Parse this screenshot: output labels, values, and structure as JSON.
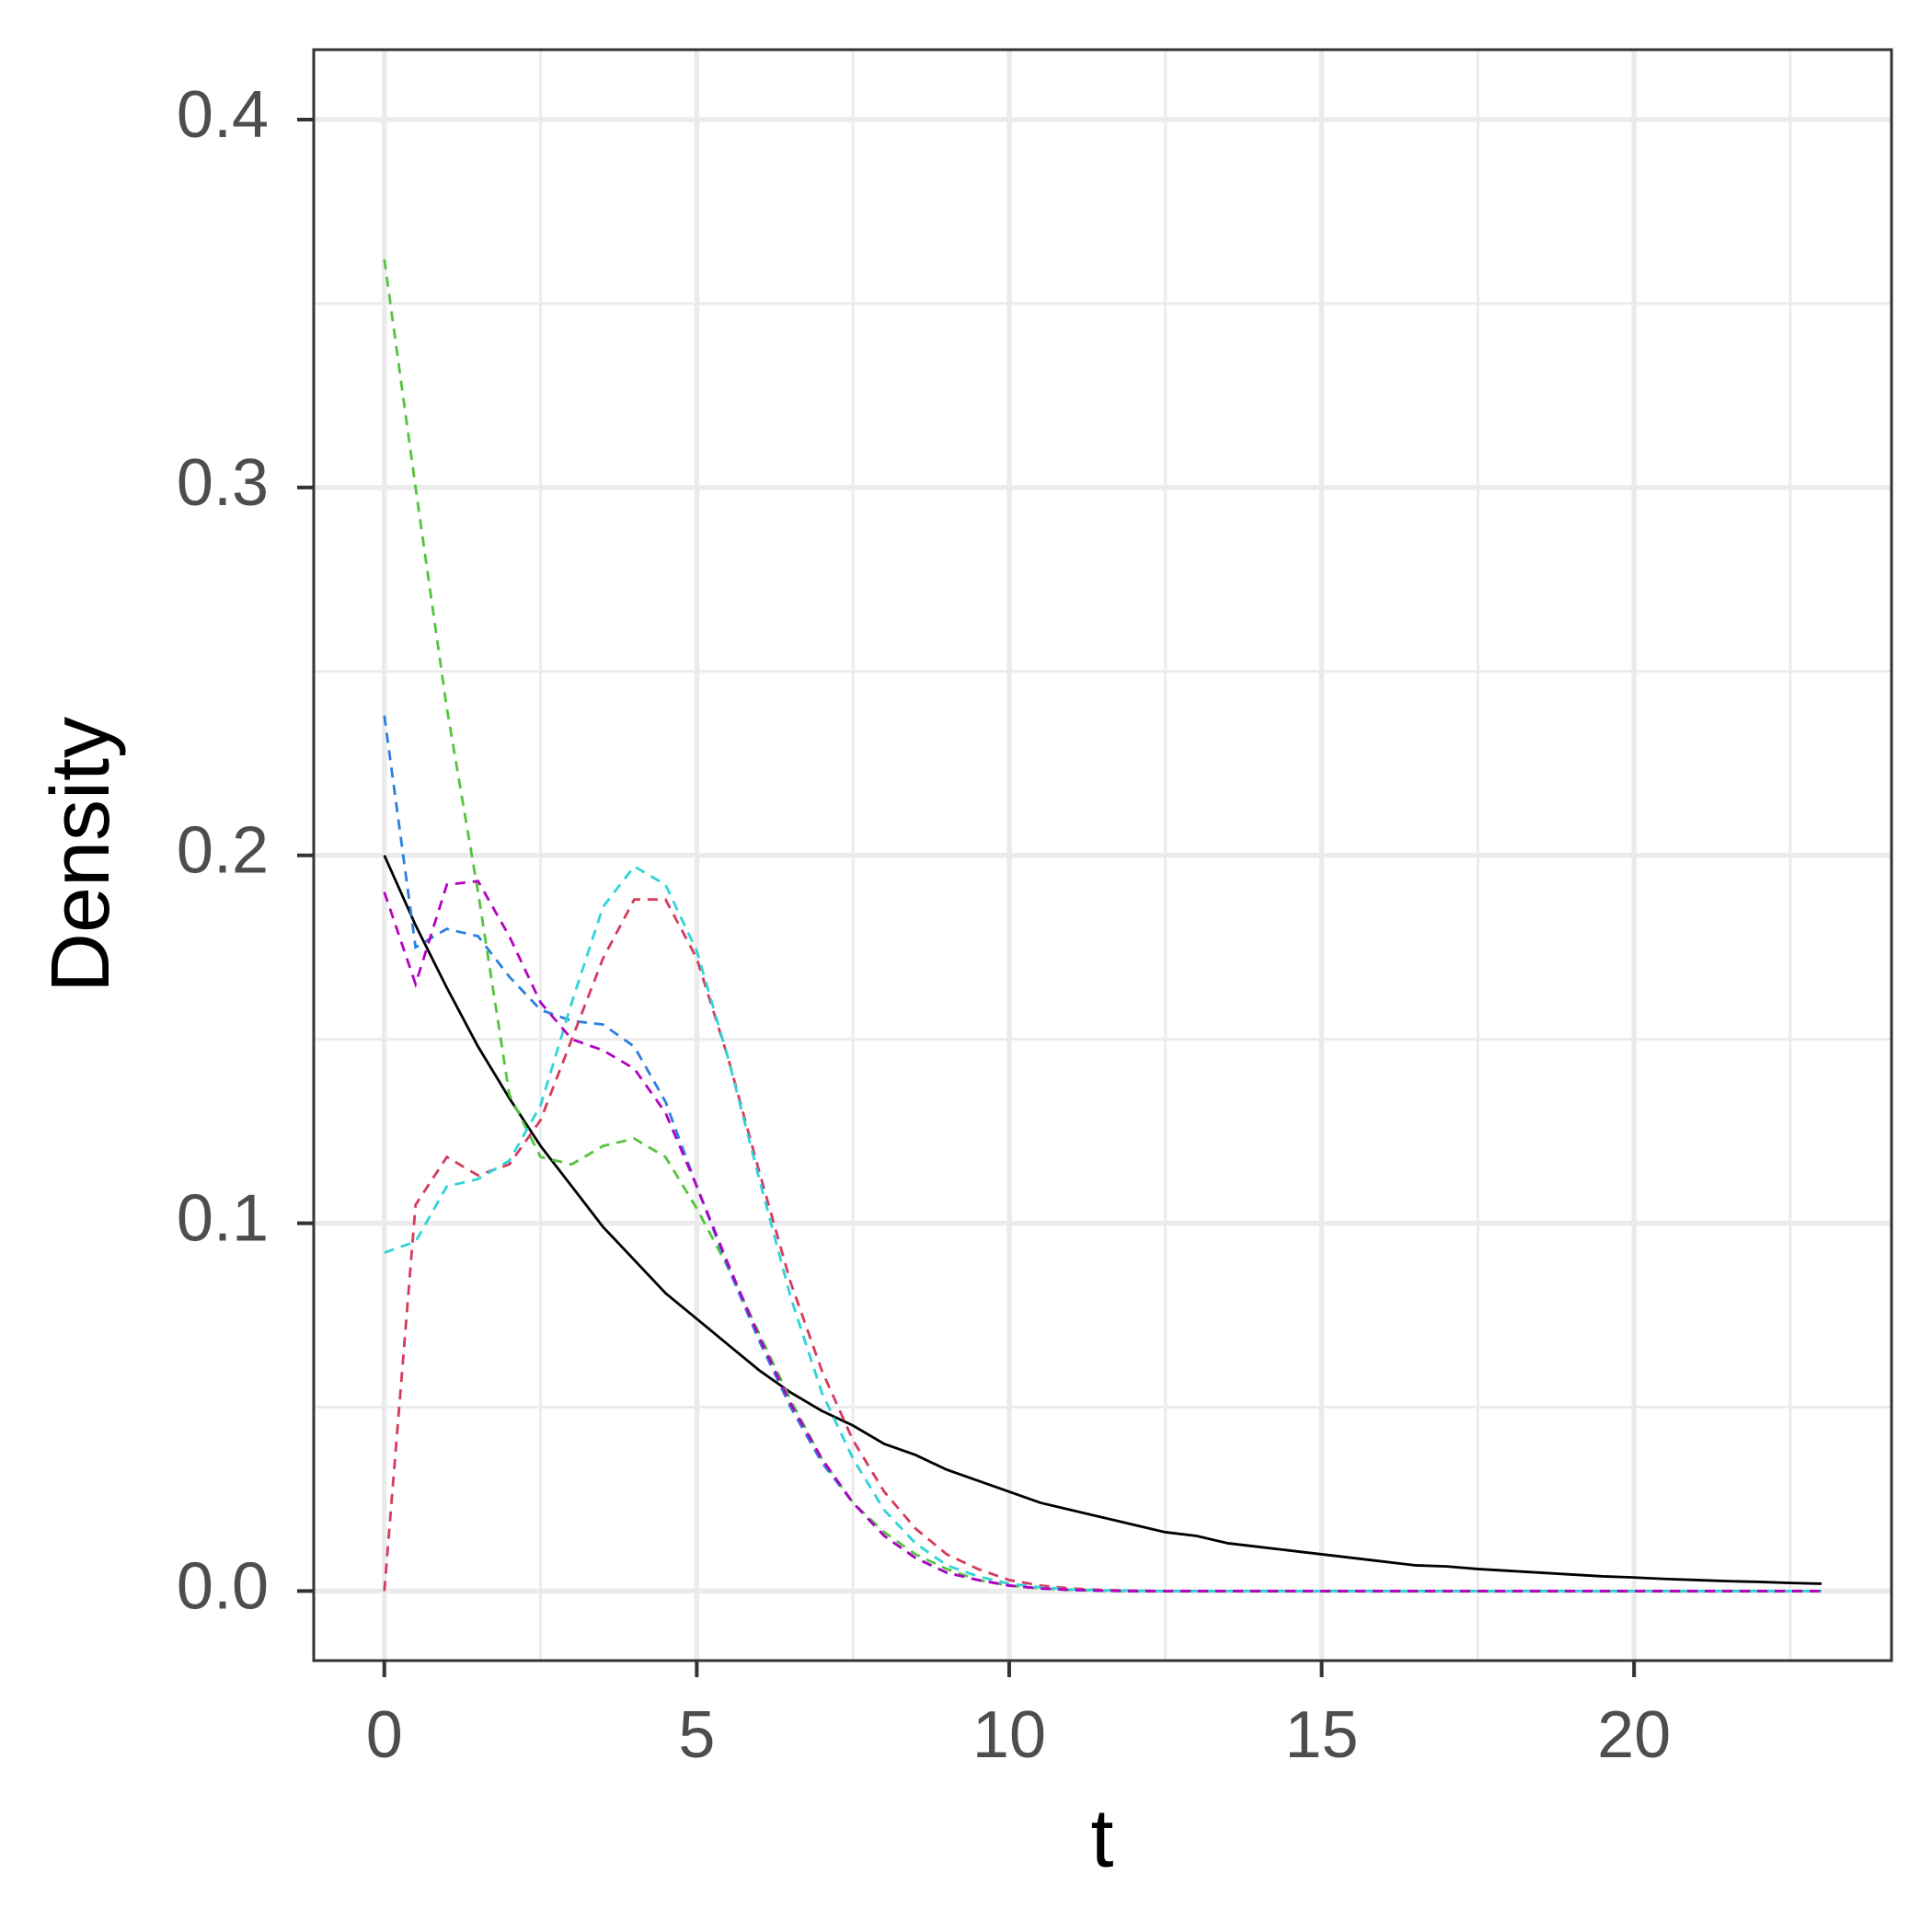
{
  "chart_data": {
    "type": "line",
    "x_label": "t",
    "y_label": "Density",
    "x": [
      0,
      0.5,
      1,
      1.5,
      2,
      2.5,
      3,
      3.5,
      4,
      4.5,
      5,
      5.5,
      6,
      6.5,
      7,
      7.5,
      8,
      8.5,
      9,
      9.5,
      10,
      10.5,
      11,
      11.5,
      12,
      12.5,
      13,
      13.5,
      14,
      14.5,
      15,
      15.5,
      16,
      16.5,
      17,
      17.5,
      18,
      18.5,
      19,
      19.5,
      20,
      20.5,
      21,
      21.5,
      22,
      22.5,
      23
    ],
    "series": [
      {
        "color": "#000000",
        "linestyle": "solid",
        "values": [
          0.2,
          0.181,
          0.164,
          0.148,
          0.134,
          0.121,
          0.11,
          0.099,
          0.09,
          0.081,
          0.074,
          0.067,
          0.06,
          0.054,
          0.049,
          0.045,
          0.04,
          0.037,
          0.033,
          0.03,
          0.027,
          0.024,
          0.022,
          0.02,
          0.018,
          0.016,
          0.015,
          0.013,
          0.012,
          0.011,
          0.01,
          0.009,
          0.008,
          0.007,
          0.0067,
          0.006,
          0.0055,
          0.005,
          0.0045,
          0.004,
          0.0037,
          0.0033,
          0.003,
          0.0027,
          0.0025,
          0.0022,
          0.002
        ]
      },
      {
        "color": "#53c43c",
        "linestyle": "dashed",
        "values": [
          0.362,
          0.3,
          0.24,
          0.19,
          0.135,
          0.118,
          0.116,
          0.121,
          0.123,
          0.118,
          0.104,
          0.088,
          0.07,
          0.052,
          0.036,
          0.024,
          0.016,
          0.01,
          0.006,
          0.003,
          0.0015,
          0.0007,
          0.0003,
          0.0001,
          0,
          0,
          0,
          0,
          0,
          0,
          0,
          0,
          0,
          0,
          0,
          0,
          0,
          0,
          0,
          0,
          0,
          0,
          0,
          0,
          0,
          0,
          0
        ]
      },
      {
        "color": "#2b7fdf",
        "linestyle": "dashed",
        "values": [
          0.238,
          0.175,
          0.18,
          0.178,
          0.167,
          0.158,
          0.155,
          0.154,
          0.148,
          0.133,
          0.11,
          0.088,
          0.068,
          0.05,
          0.035,
          0.024,
          0.015,
          0.009,
          0.005,
          0.003,
          0.0015,
          0.0007,
          0.0003,
          0.0001,
          0,
          0,
          0,
          0,
          0,
          0,
          0,
          0,
          0,
          0,
          0,
          0,
          0,
          0,
          0,
          0,
          0,
          0,
          0,
          0,
          0,
          0,
          0
        ]
      },
      {
        "color": "#d63a5c",
        "linestyle": "dashed",
        "values": [
          0,
          0.105,
          0.118,
          0.113,
          0.116,
          0.128,
          0.15,
          0.172,
          0.188,
          0.188,
          0.172,
          0.145,
          0.114,
          0.084,
          0.06,
          0.041,
          0.027,
          0.017,
          0.01,
          0.006,
          0.003,
          0.0015,
          0.0007,
          0.0003,
          0.0001,
          0,
          0,
          0,
          0,
          0,
          0,
          0,
          0,
          0,
          0,
          0,
          0,
          0,
          0,
          0,
          0,
          0,
          0,
          0,
          0,
          0,
          0
        ]
      },
      {
        "color": "#2fd4d8",
        "linestyle": "dashed",
        "values": [
          0.092,
          0.095,
          0.11,
          0.112,
          0.117,
          0.132,
          0.16,
          0.186,
          0.197,
          0.192,
          0.174,
          0.145,
          0.112,
          0.08,
          0.054,
          0.036,
          0.022,
          0.013,
          0.007,
          0.004,
          0.002,
          0.001,
          0.0004,
          0.0002,
          0.0001,
          0,
          0,
          0,
          0,
          0,
          0,
          0,
          0,
          0,
          0,
          0,
          0,
          0,
          0,
          0,
          0,
          0,
          0,
          0,
          0,
          0,
          0
        ]
      },
      {
        "color": "#b400c0",
        "linestyle": "dashed",
        "values": [
          0.19,
          0.165,
          0.192,
          0.193,
          0.178,
          0.16,
          0.15,
          0.147,
          0.142,
          0.13,
          0.11,
          0.089,
          0.069,
          0.051,
          0.036,
          0.024,
          0.015,
          0.009,
          0.005,
          0.003,
          0.0015,
          0.0007,
          0.0003,
          0.0001,
          0,
          0,
          0,
          0,
          0,
          0,
          0,
          0,
          0,
          0,
          0,
          0,
          0,
          0,
          0,
          0,
          0,
          0,
          0,
          0,
          0,
          0,
          0
        ]
      }
    ],
    "xlim": [
      -1.13,
      24.12
    ],
    "ylim": [
      -0.0189,
      0.419
    ],
    "xticks": [
      0,
      5,
      10,
      15,
      20
    ],
    "yticks": [
      {
        "value": 0,
        "label": "0.0"
      },
      0.1,
      0.2,
      0.3,
      0.4
    ],
    "xminorticks": [
      2.5,
      7.5,
      12.5,
      17.5,
      22.5
    ],
    "yminorticks": [
      0.05,
      0.15,
      0.25,
      0.35
    ],
    "grid": true
  }
}
